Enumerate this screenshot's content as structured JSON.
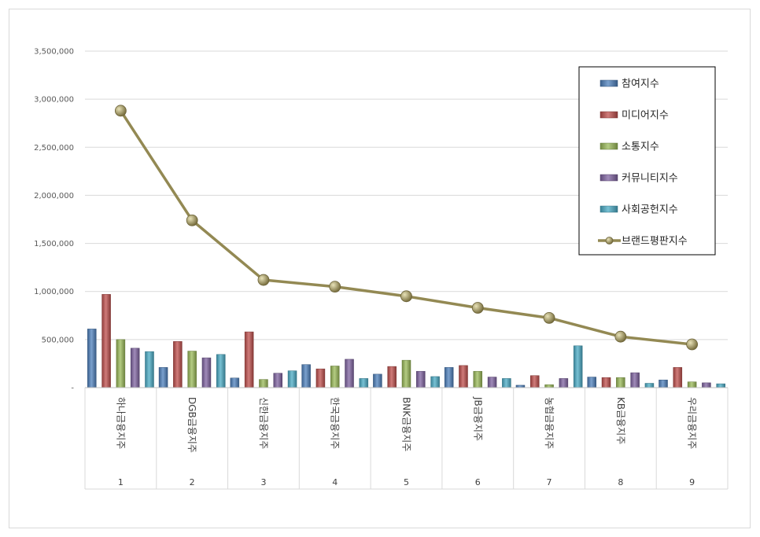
{
  "chart_data": {
    "type": "bar",
    "title": "",
    "xlabel": "",
    "ylabel": "",
    "ylim": [
      0,
      3500000
    ],
    "y_ticks": [
      "-",
      "500,000",
      "1,000,000",
      "1,500,000",
      "2,000,000",
      "2,500,000",
      "3,000,000",
      "3,500,000"
    ],
    "grid": true,
    "legend_position": "top-right",
    "categories": [
      "하나금융지주",
      "DGB금융지주",
      "신한금융지주",
      "한국금융지주",
      "BNK금융지주",
      "JB금융지주",
      "농협금융지주",
      "KB금융지주",
      "우리금융지주"
    ],
    "ranks": [
      "1",
      "2",
      "3",
      "4",
      "5",
      "6",
      "7",
      "8",
      "9"
    ],
    "series": [
      {
        "name": "참여지수",
        "type": "bar",
        "color": "#4f81bd",
        "values": [
          610000,
          210000,
          100000,
          240000,
          140000,
          210000,
          25000,
          110000,
          80000
        ]
      },
      {
        "name": "미디어지수",
        "type": "bar",
        "color": "#c0504d",
        "values": [
          970000,
          480000,
          580000,
          195000,
          220000,
          230000,
          125000,
          105000,
          210000
        ]
      },
      {
        "name": "소통지수",
        "type": "bar",
        "color": "#9bbb59",
        "values": [
          500000,
          380000,
          85000,
          225000,
          285000,
          170000,
          30000,
          105000,
          60000
        ]
      },
      {
        "name": "커뮤니티지수",
        "type": "bar",
        "color": "#8064a2",
        "values": [
          410000,
          310000,
          150000,
          295000,
          170000,
          110000,
          95000,
          155000,
          50000
        ]
      },
      {
        "name": "사회공헌지수",
        "type": "bar",
        "color": "#4bacc6",
        "values": [
          375000,
          345000,
          175000,
          95000,
          115000,
          95000,
          435000,
          45000,
          40000
        ]
      },
      {
        "name": "브랜드평판지수",
        "type": "line",
        "color": "#938953",
        "values": [
          2880000,
          1740000,
          1120000,
          1050000,
          950000,
          830000,
          725000,
          530000,
          450000
        ]
      }
    ]
  }
}
